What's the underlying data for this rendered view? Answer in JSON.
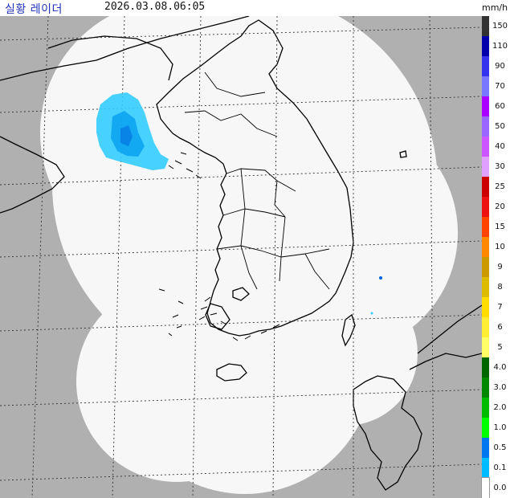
{
  "header": {
    "title": "실황 레이더",
    "timestamp": "2026.03.08.06:05",
    "unit": "mm/h"
  },
  "colors": {
    "land": "#b0b0b0",
    "coverage": "#f7f7f7",
    "coastline": "#000000",
    "grid": "#333333",
    "echo_light": "#33ccff",
    "echo_mid": "#0099ee",
    "echo_heavy": "#0066dd"
  },
  "legend": {
    "labels": [
      "150",
      "110",
      "90",
      "70",
      "60",
      "50",
      "40",
      "30",
      "25",
      "20",
      "15",
      "10",
      "9",
      "8",
      "7",
      "6",
      "5",
      "4.0",
      "3.0",
      "2.0",
      "1.0",
      "0.5",
      "0.1",
      "0.0"
    ],
    "colors": [
      "#333333",
      "#0000aa",
      "#3333ee",
      "#7777ff",
      "#aa00ff",
      "#9966ff",
      "#cc55ff",
      "#e0a0ff",
      "#cc0000",
      "#ee1111",
      "#ff4400",
      "#ff8800",
      "#cc9900",
      "#ddbb00",
      "#ffdd00",
      "#ffee33",
      "#ffff66",
      "#006600",
      "#008800",
      "#00bb00",
      "#00ff00",
      "#0077ee",
      "#00bbff",
      "#ffffff"
    ]
  },
  "map": {
    "regions": [
      "Korean Peninsula",
      "Jeju Island",
      "Yellow Sea",
      "East Sea",
      "Kyushu"
    ],
    "precipitation": "light echoes over the Yellow Sea (0.1–1.0 mm/h)"
  }
}
